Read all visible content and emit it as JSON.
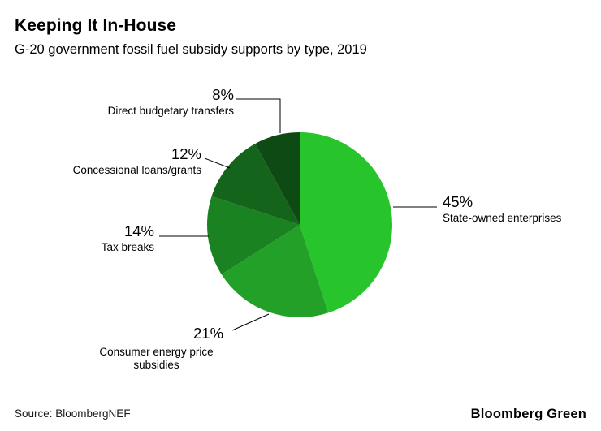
{
  "header": {
    "title": "Keeping It In-House",
    "subtitle": "G-20 government fossil fuel subsidy supports by type, 2019"
  },
  "footer": {
    "source": "Source: BloombergNEF",
    "brand": "Bloomberg Green"
  },
  "chart_data": {
    "type": "pie",
    "title": "Keeping It In-House",
    "subtitle": "G-20 government fossil fuel subsidy supports by type, 2019",
    "units": "percent",
    "start_angle_deg": 0,
    "direction": "clockwise",
    "legend_position": "outside-callouts",
    "slices": [
      {
        "label": "State-owned enterprises",
        "pct_label": "45%",
        "value": 45,
        "color": "#27c42c"
      },
      {
        "label": "Consumer energy price subsidies",
        "pct_label": "21%",
        "value": 21,
        "color": "#23a028"
      },
      {
        "label": "Tax breaks",
        "pct_label": "14%",
        "value": 14,
        "color": "#1b8221"
      },
      {
        "label": "Concessional loans/grants",
        "pct_label": "12%",
        "value": 12,
        "color": "#15641b"
      },
      {
        "label": "Direct budgetary transfers",
        "pct_label": "8%",
        "value": 8,
        "color": "#0e4a14"
      }
    ]
  }
}
